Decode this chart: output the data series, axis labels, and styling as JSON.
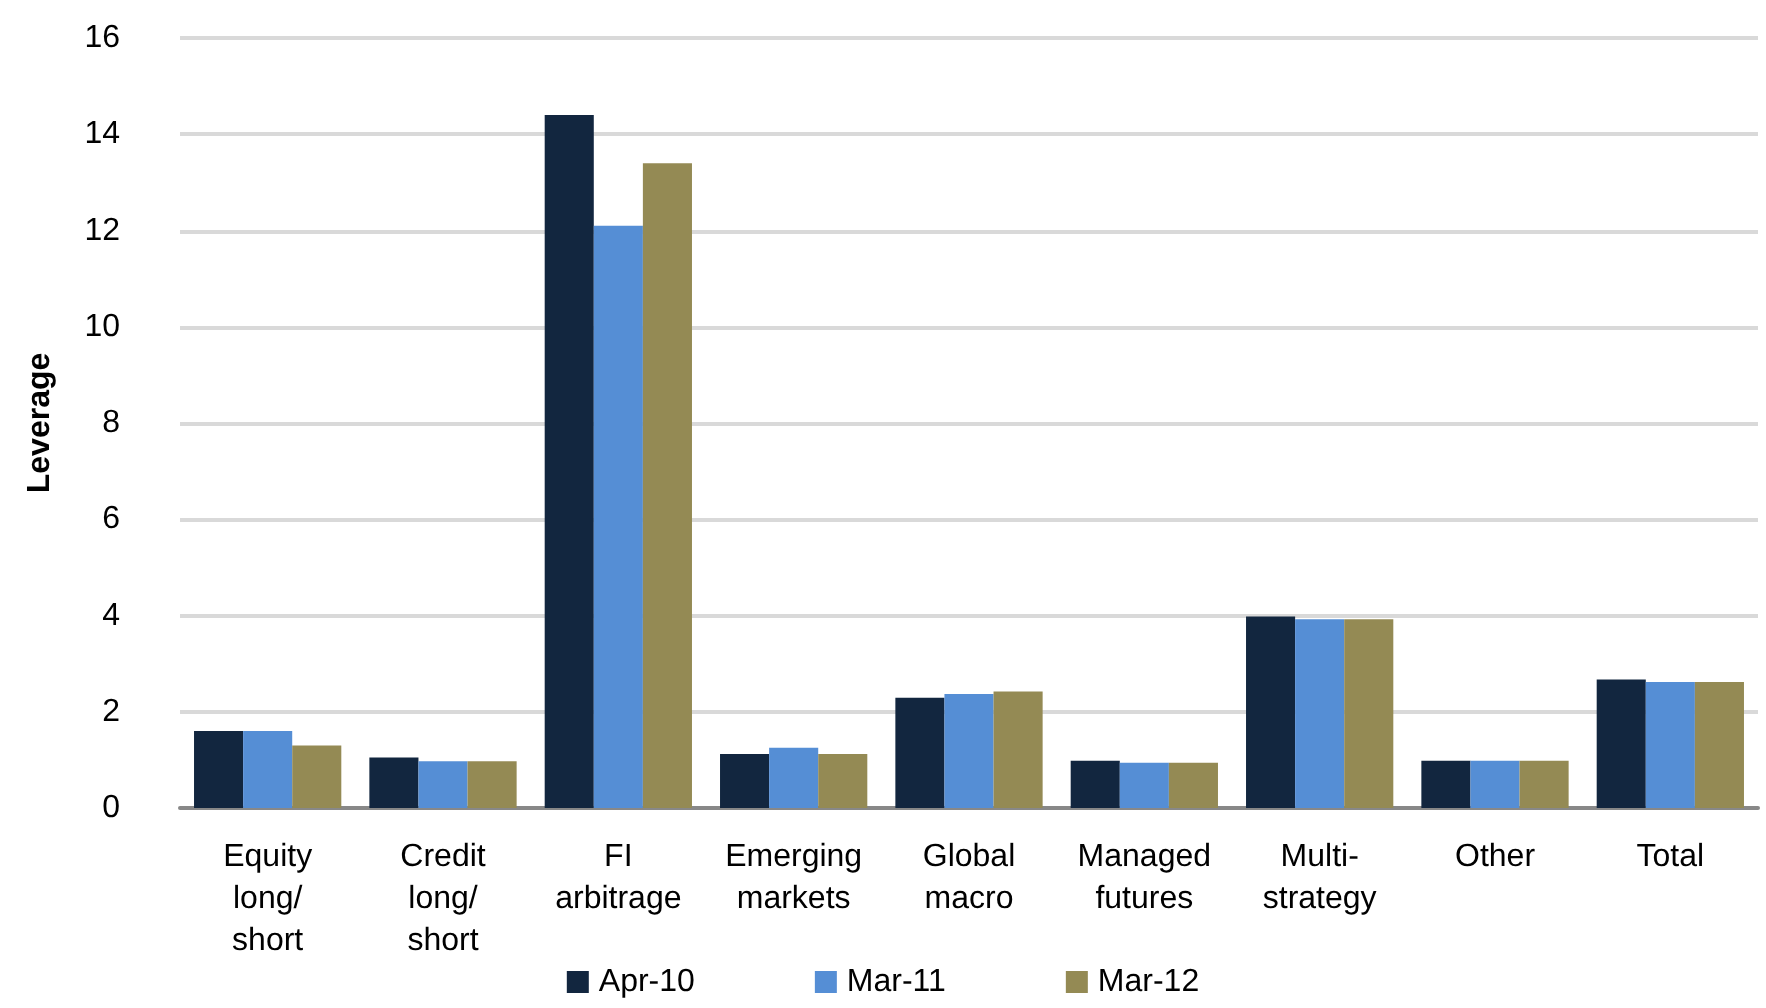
{
  "chart_data": {
    "type": "bar",
    "ylabel": "Leverage",
    "categories": [
      "Equity\nlong/\nshort",
      "Credit\nlong/\nshort",
      "FI\narbitrage",
      "Emerging\nmarkets",
      "Global\nmacro",
      "Managed\nfutures",
      "Multi-\nstrategy",
      "Other",
      "Total"
    ],
    "series": [
      {
        "name": "Apr-10",
        "color": "#12263f",
        "values": [
          1.6,
          1.05,
          14.4,
          1.12,
          2.29,
          0.98,
          3.98,
          0.98,
          2.67
        ]
      },
      {
        "name": "Mar-11",
        "color": "#558ed5",
        "values": [
          1.6,
          0.97,
          12.1,
          1.25,
          2.37,
          0.94,
          3.92,
          0.98,
          2.62
        ]
      },
      {
        "name": "Mar-12",
        "color": "#948a54",
        "values": [
          1.3,
          0.97,
          13.4,
          1.12,
          2.42,
          0.94,
          3.92,
          0.98,
          2.62
        ]
      }
    ],
    "ylim": [
      0,
      16
    ],
    "yticks": [
      0,
      2,
      4,
      6,
      8,
      10,
      12,
      14,
      16
    ],
    "grid": "y",
    "legend": "bottom"
  }
}
